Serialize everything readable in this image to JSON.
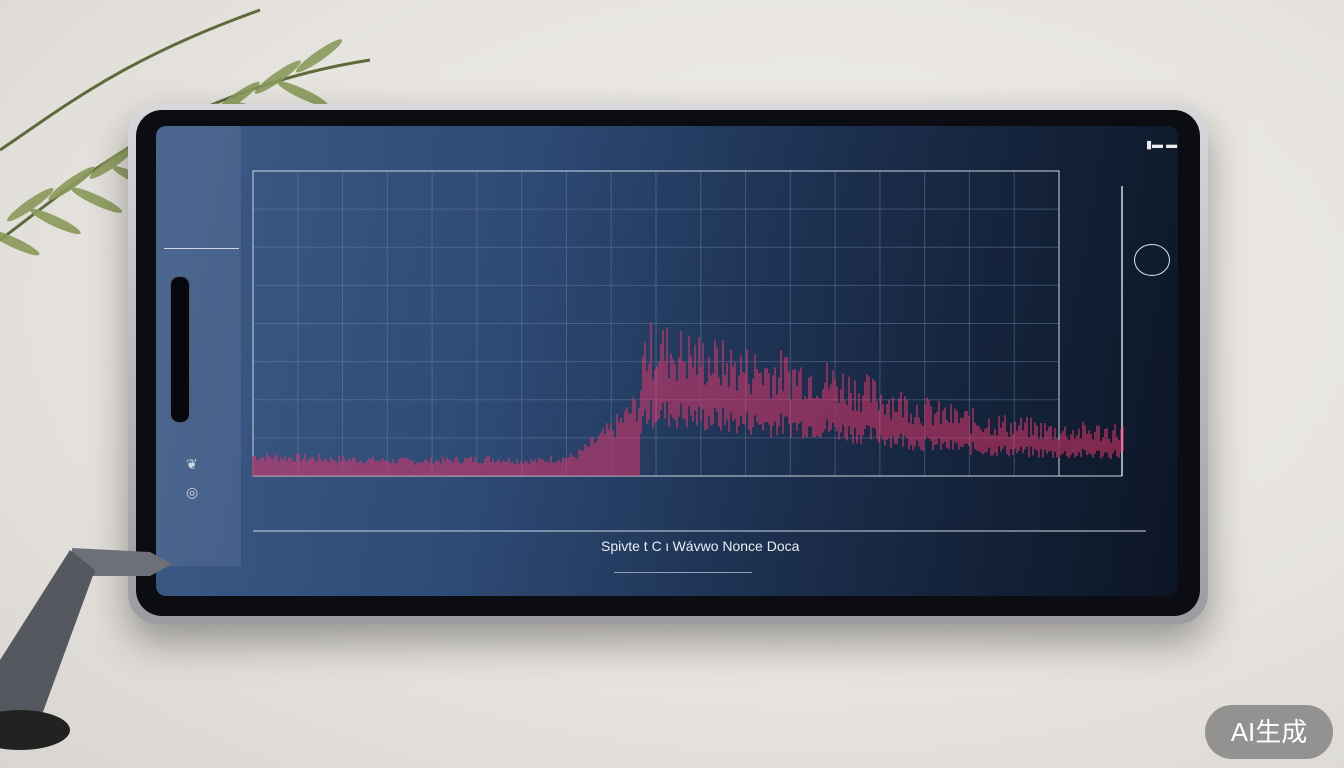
{
  "screen": {
    "caption": "Spivte t C ι Wávwo Nonce Doca"
  },
  "watermark": "AI生成",
  "colors": {
    "waveform": "#e0366a",
    "screen_bg": "#2d4a74",
    "grid": "#6d86aa",
    "background": "#e9e6e1"
  },
  "icons": [
    "leaf-icon",
    "circle-target-icon",
    "battery-icon",
    "wifi-icon"
  ],
  "chart_data": {
    "type": "area",
    "title": "",
    "xlabel": "",
    "ylabel": "",
    "grid": true,
    "x": [
      0,
      10,
      20,
      30,
      35,
      40,
      45,
      48,
      48.5,
      50,
      55,
      60,
      65,
      70,
      75,
      80,
      85,
      90,
      95,
      100
    ],
    "values": [
      8,
      7,
      6,
      7,
      6,
      8,
      20,
      30,
      50,
      52,
      48,
      44,
      42,
      40,
      35,
      30,
      25,
      22,
      20,
      18
    ],
    "ylim": [
      0,
      100
    ],
    "xlim": [
      0,
      100
    ]
  }
}
